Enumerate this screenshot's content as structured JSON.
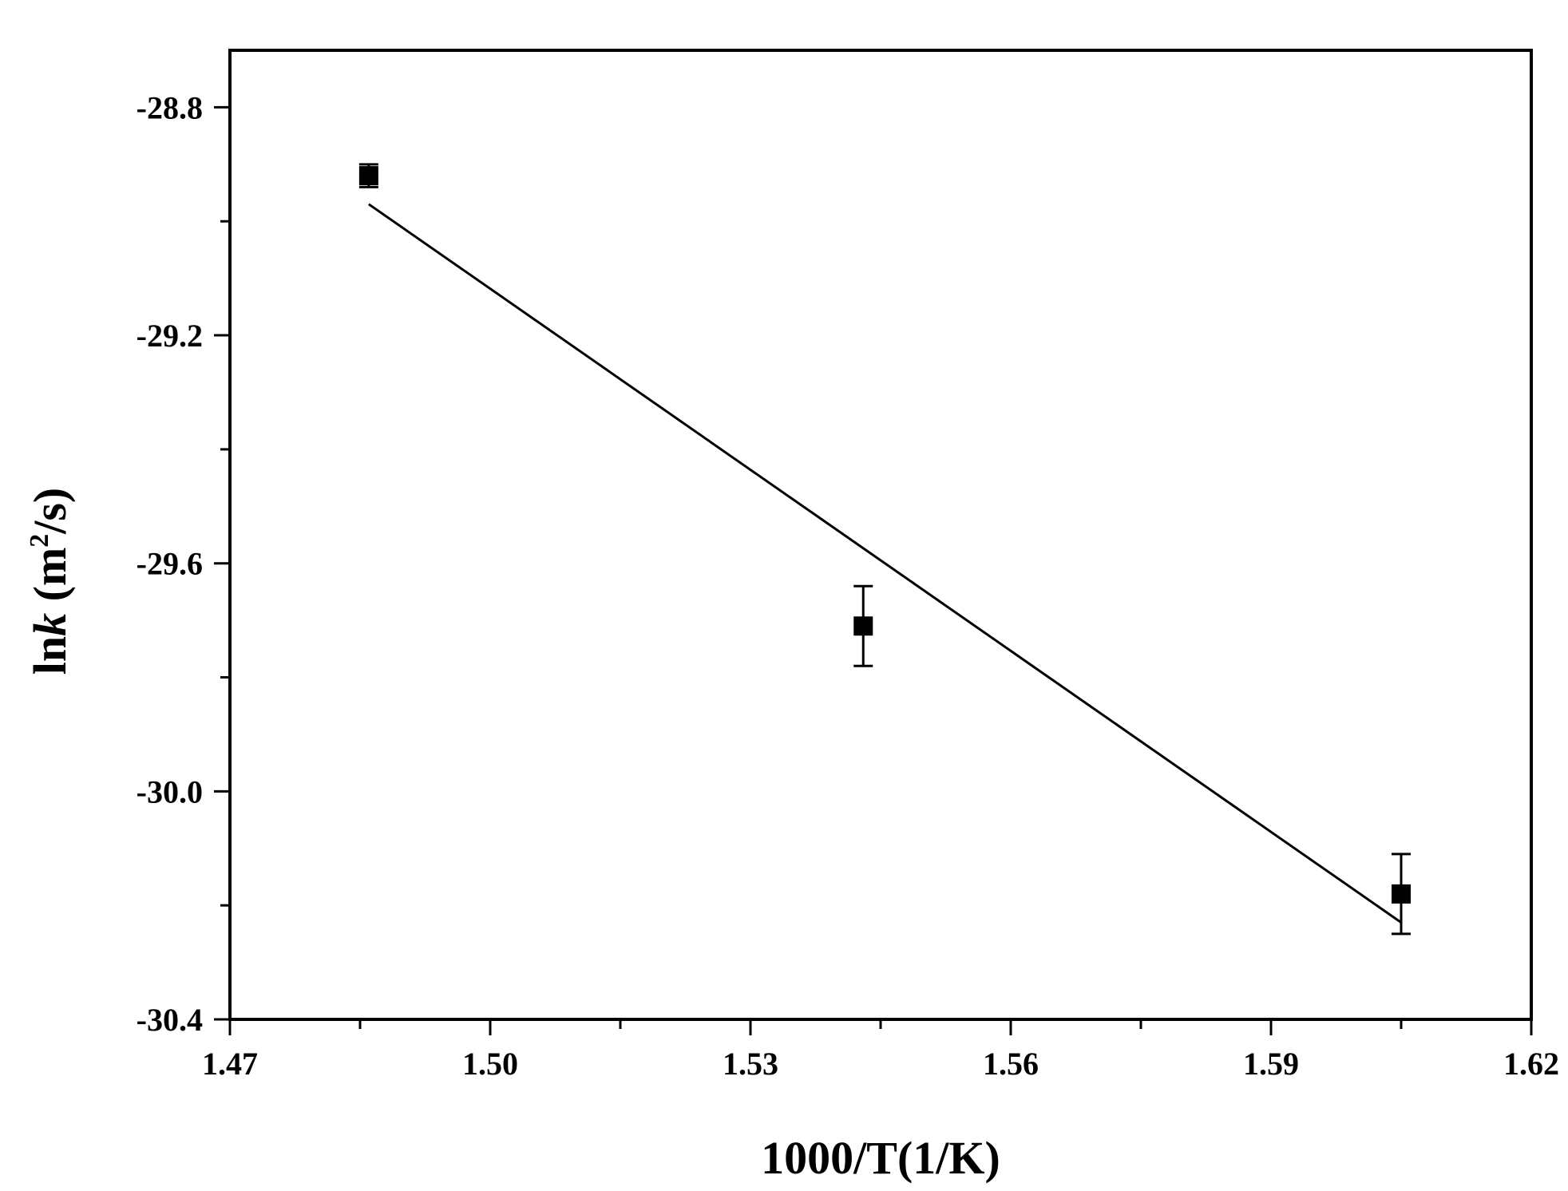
{
  "chart_data": {
    "type": "scatter",
    "xlabel": "1000/T(1/K)",
    "ylabel": {
      "prefix": "ln",
      "var": "k",
      "unit_open": " (m",
      "unit_sup": "2",
      "unit_close": "/s)"
    },
    "xlim": [
      1.47,
      1.62
    ],
    "ylim": [
      -30.4,
      -28.7
    ],
    "x_ticks": [
      "1.47",
      "1.50",
      "1.53",
      "1.56",
      "1.59",
      "1.62"
    ],
    "x_minor_ticks": [
      1.485,
      1.515,
      1.545,
      1.575,
      1.605
    ],
    "y_ticks": [
      "-28.8",
      "-29.2",
      "-29.6",
      "-30.0",
      "-30.4"
    ],
    "y_minor_ticks": [
      -29.0,
      -29.4,
      -29.8,
      -30.2
    ],
    "grid": false,
    "series": [
      {
        "marker": "square",
        "color": "#000000",
        "points": [
          {
            "x": 1.486,
            "y": -28.92,
            "err": 0.02
          },
          {
            "x": 1.543,
            "y": -29.71,
            "err": 0.07
          },
          {
            "x": 1.605,
            "y": -30.18,
            "err": 0.07
          }
        ]
      }
    ],
    "fit_line": {
      "x": [
        1.486,
        1.605
      ],
      "y": [
        -28.97,
        -30.23
      ],
      "color": "#000000"
    }
  }
}
